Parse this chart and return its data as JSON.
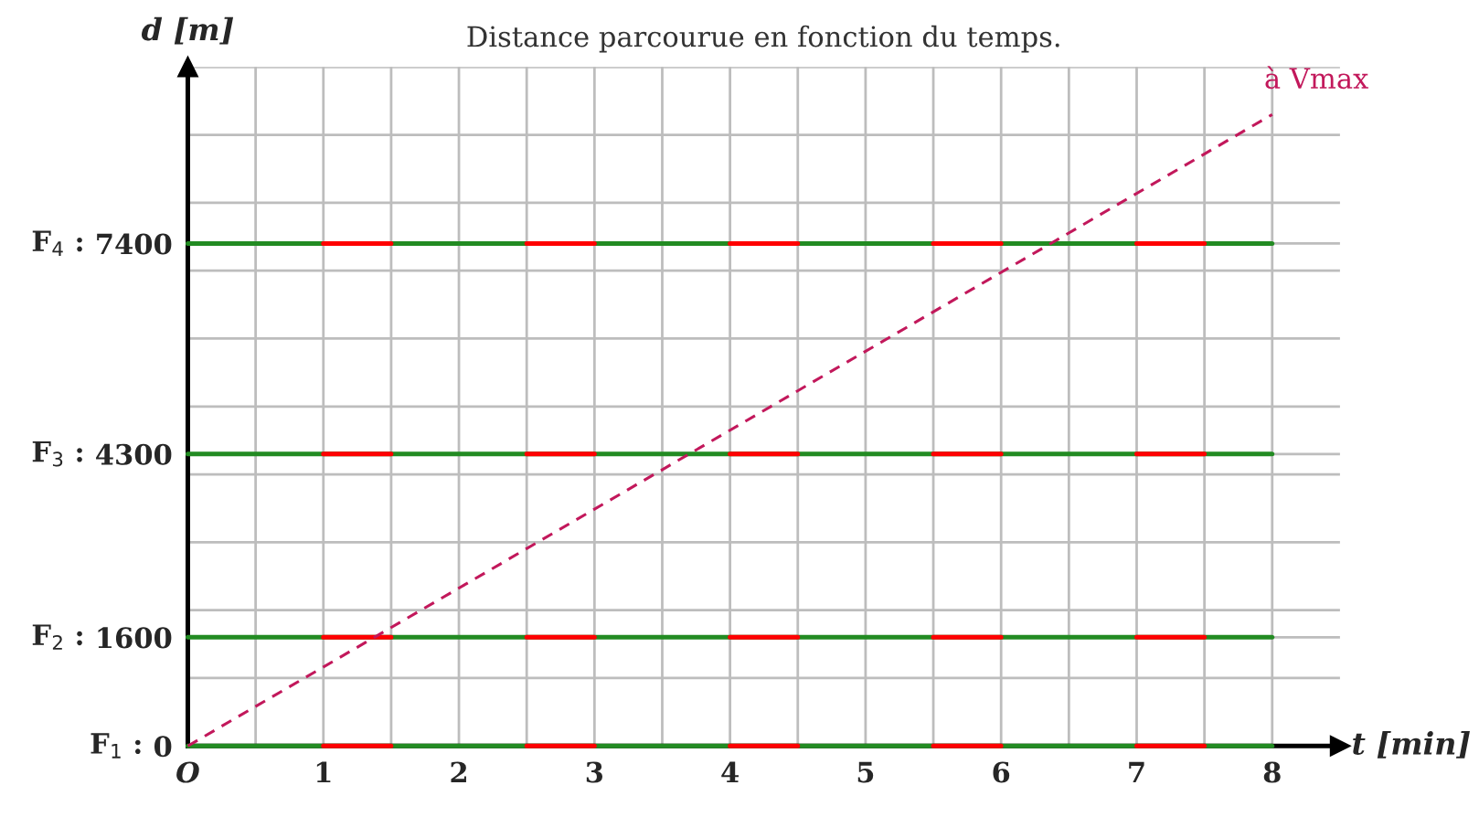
{
  "chart_data": {
    "type": "line",
    "title": "Distance parcourue en fonction du temps.",
    "xlabel": "t [min]",
    "ylabel": "d [m]",
    "xlim": [
      0,
      8.5
    ],
    "ylim": [
      0,
      10000
    ],
    "xticks": [
      {
        "value": 0,
        "label": "O"
      },
      {
        "value": 0.5,
        "label": null
      },
      1,
      {
        "value": 1.5,
        "label": null
      },
      2,
      {
        "value": 2.5,
        "label": null
      },
      3,
      {
        "value": 3.5,
        "label": null
      },
      4,
      {
        "value": 4.5,
        "label": null
      },
      5,
      {
        "value": 5.5,
        "label": null
      },
      6,
      {
        "value": 6.5,
        "label": null
      },
      7,
      {
        "value": 7.5,
        "label": null
      },
      8
    ],
    "yticks": [
      0,
      {
        "value": 1000,
        "label": null
      },
      1600,
      {
        "value": 2000,
        "label": null
      },
      {
        "value": 3000,
        "label": null
      },
      {
        "value": 4000,
        "label": null
      },
      4300,
      {
        "value": 5000,
        "label": null
      },
      {
        "value": 6000,
        "label": null
      },
      {
        "value": 7000,
        "label": null
      },
      7400,
      {
        "value": 8000,
        "label": null
      },
      {
        "value": 9000,
        "label": null
      },
      {
        "value": 10000,
        "label": null
      }
    ],
    "grid": true,
    "marker": "none",
    "series": [
      {
        "color": "#228b22",
        "line_style": "solid",
        "x": [
          0,
          8
        ],
        "values": [
          0,
          0
        ]
      },
      {
        "color": "#228b22",
        "line_style": "solid",
        "x": [
          0,
          8
        ],
        "values": [
          1600,
          1600
        ]
      },
      {
        "color": "#228b22",
        "line_style": "solid",
        "x": [
          0,
          8
        ],
        "values": [
          4300,
          4300
        ]
      },
      {
        "color": "#228b22",
        "line_style": "solid",
        "x": [
          0,
          8
        ],
        "values": [
          7400,
          7400
        ]
      },
      {
        "color": "#ff0000",
        "line_style": "solid",
        "x": [
          1,
          1.5,
          2,
          2.5,
          3,
          3.5,
          4,
          4.5,
          5,
          5.5,
          6,
          6.5,
          7,
          7.5
        ],
        "values": [
          0,
          0,
          null,
          0,
          0,
          null,
          0,
          0,
          null,
          0,
          0,
          null,
          0,
          0
        ]
      },
      {
        "color": "#ff0000",
        "line_style": "solid",
        "x": [
          1,
          1.5,
          2,
          2.5,
          3,
          3.5,
          4,
          4.5,
          5,
          5.5,
          6,
          6.5,
          7,
          7.5
        ],
        "values": [
          1600,
          1600,
          null,
          1600,
          1600,
          null,
          1600,
          1600,
          null,
          1600,
          1600,
          null,
          1600,
          1600
        ]
      },
      {
        "color": "#ff0000",
        "line_style": "solid",
        "x": [
          1,
          1.5,
          2,
          2.5,
          3,
          3.5,
          4,
          4.5,
          5,
          5.5,
          6,
          6.5,
          7,
          7.5
        ],
        "values": [
          4300,
          4300,
          null,
          4300,
          4300,
          null,
          4300,
          4300,
          null,
          4300,
          4300,
          null,
          4300,
          4300
        ]
      },
      {
        "color": "#ff0000",
        "line_style": "solid",
        "x": [
          1,
          1.5,
          2,
          2.5,
          3,
          3.5,
          4,
          4.5,
          5,
          5.5,
          6,
          6.5,
          7,
          7.5
        ],
        "values": [
          7400,
          7400,
          null,
          7400,
          7400,
          null,
          7400,
          7400,
          null,
          7400,
          7400,
          null,
          7400,
          7400
        ]
      },
      {
        "color": "#c2185b",
        "line_style": "dashed",
        "x": [
          0,
          8
        ],
        "values": [
          0,
          9300
        ]
      }
    ],
    "annotations": [
      "à Vmax",
      "F$_{1}$ :",
      "F$_{2}$ :",
      "F$_{3}$ :",
      "F$_{4}$ :"
    ]
  }
}
